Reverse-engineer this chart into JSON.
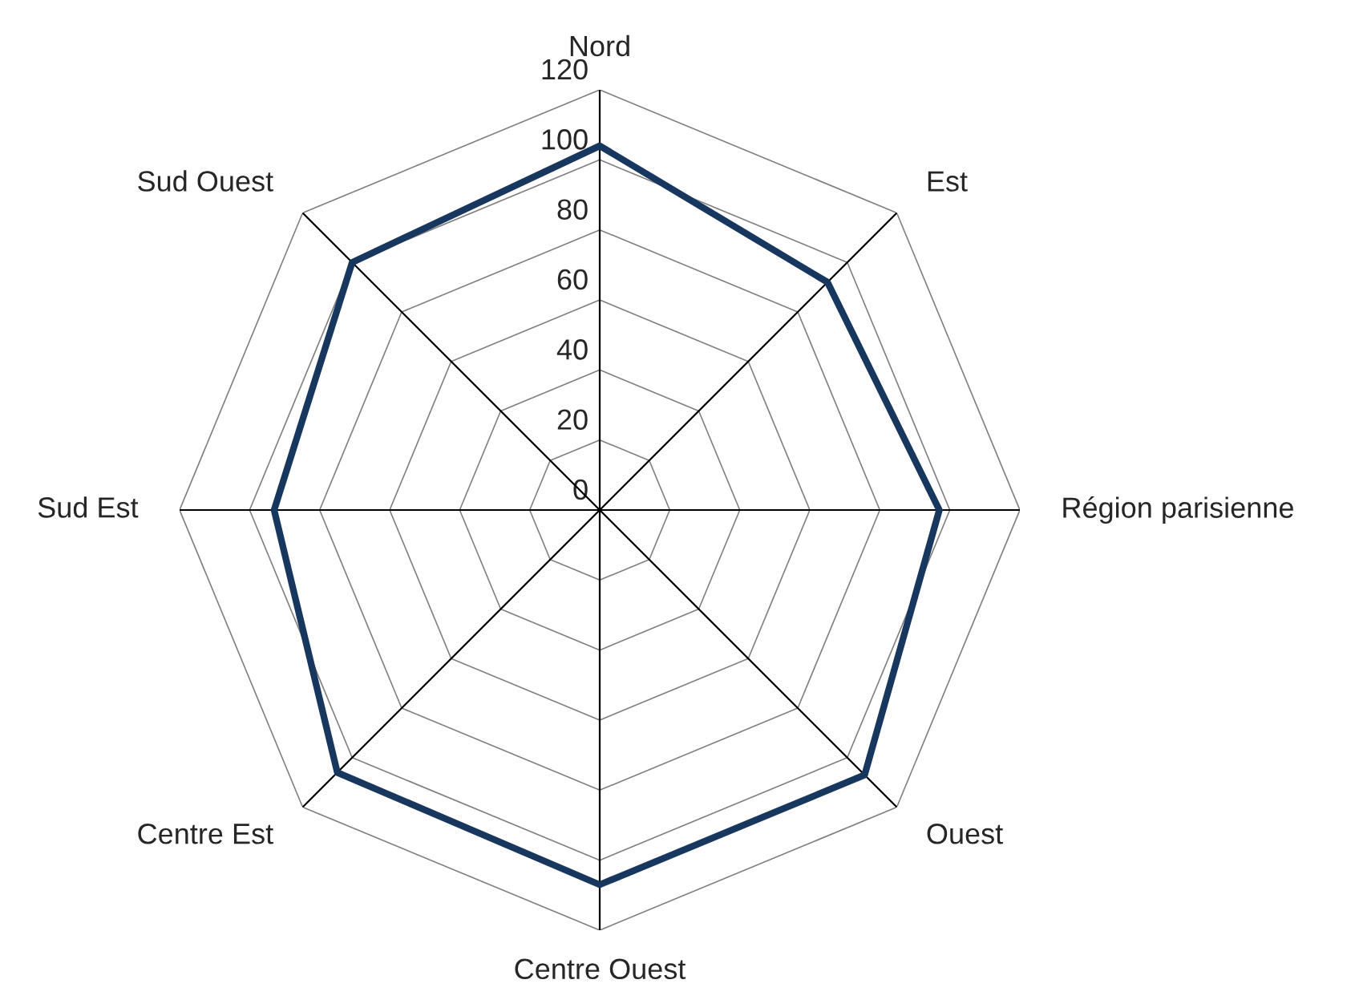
{
  "chart_data": {
    "type": "radar",
    "categories": [
      "Nord",
      "Est",
      "Région parisienne",
      "Ouest",
      "Centre Ouest",
      "Centre Est",
      "Sud Est",
      "Sud Ouest"
    ],
    "series": [
      {
        "color": "#17375e",
        "values": [
          104,
          92,
          97,
          107,
          107,
          106,
          93,
          100
        ]
      }
    ],
    "ylim": [
      0,
      120
    ],
    "yticks": [
      0,
      20,
      40,
      60,
      80,
      100,
      120
    ],
    "grid": true,
    "legend": false,
    "marker": "none",
    "line_style": "solid"
  }
}
